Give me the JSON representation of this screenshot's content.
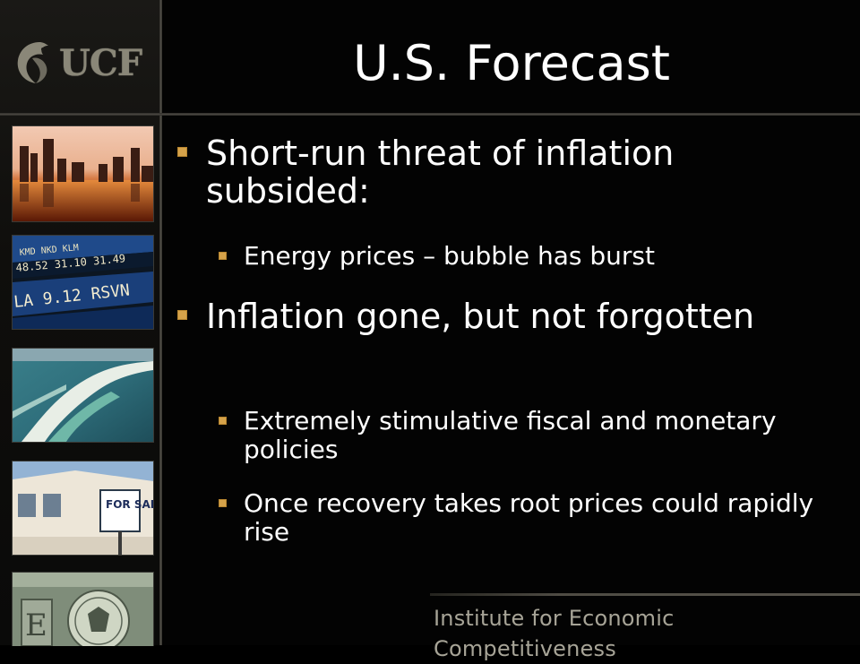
{
  "slide": {
    "title": "U.S. Forecast",
    "logo_text": "UCF",
    "footer": "Institute for Economic Competitiveness",
    "bullets": [
      {
        "text": "Short-run threat of inflation subsided:",
        "sub": [
          "Energy prices – bubble has burst"
        ]
      },
      {
        "text": "Inflation gone, but not forgotten",
        "sub": [
          "Extremely stimulative fiscal and monetary policies",
          "Once recovery takes root prices could rapidly rise"
        ]
      }
    ]
  },
  "photos": [
    "city-skyline-sunset",
    "stock-ticker-board",
    "coastline-aerial",
    "for-sale-house",
    "dollar-bill-seal"
  ],
  "photo_texts": {
    "ticker_top": "KMD  NKD  KLM",
    "ticker_vals": "48.52  31.10  31.49",
    "ticker_big": "LA  9.12   RSVN",
    "for_sale": "FOR SALE"
  },
  "colors": {
    "background": "#000000",
    "bullet_marker": "#d5a24a",
    "footer_text": "#a7a497",
    "title_text": "#ffffff"
  }
}
